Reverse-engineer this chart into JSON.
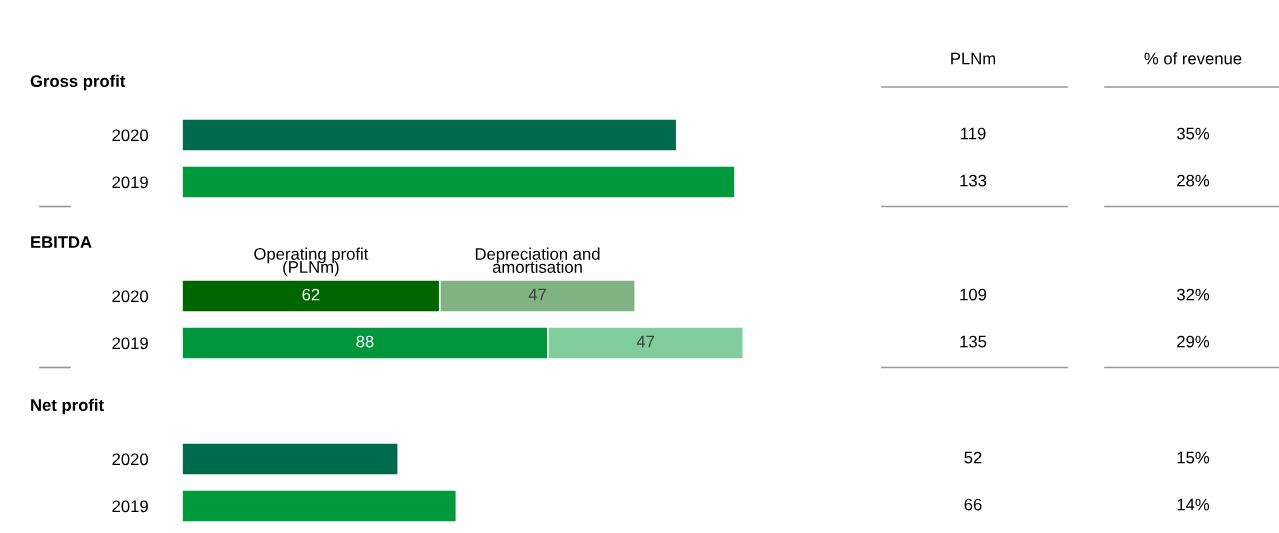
{
  "chart_data": [
    {
      "type": "bar",
      "orientation": "horizontal",
      "title": "Gross profit",
      "categories": [
        "2020",
        "2019"
      ],
      "values": [
        119,
        133
      ],
      "colors": [
        "#006b4c",
        "#009a3c"
      ],
      "tick_labels": "y",
      "data_labels": true,
      "annotations": [
        "PLNm",
        "% of revenue",
        "35%",
        "28%"
      ]
    },
    {
      "type": "bar",
      "orientation": "horizontal",
      "stacked": true,
      "title": "EBITDA",
      "categories": [
        "2020",
        "2019"
      ],
      "series": [
        {
          "name": "Operating profit\n(PLNm)",
          "colors": [
            "#006600",
            "#00963c"
          ],
          "values": [
            62,
            88
          ]
        },
        {
          "name": "Depreciation and\namortisation",
          "colors": [
            "#80b283",
            "#80cc9c"
          ],
          "values": [
            47,
            47
          ]
        }
      ],
      "tick_labels": "y",
      "data_labels": true,
      "legend": "top",
      "annotations": [
        "109",
        "135",
        "32%",
        "29%"
      ]
    },
    {
      "type": "bar",
      "orientation": "horizontal",
      "title": "Net profit",
      "categories": [
        "2020",
        "2019"
      ],
      "values": [
        52,
        66
      ],
      "colors": [
        "#006b4c",
        "#009a3c"
      ],
      "tick_labels": "y",
      "data_labels": true,
      "annotations": [
        "15%",
        "14%"
      ]
    }
  ]
}
